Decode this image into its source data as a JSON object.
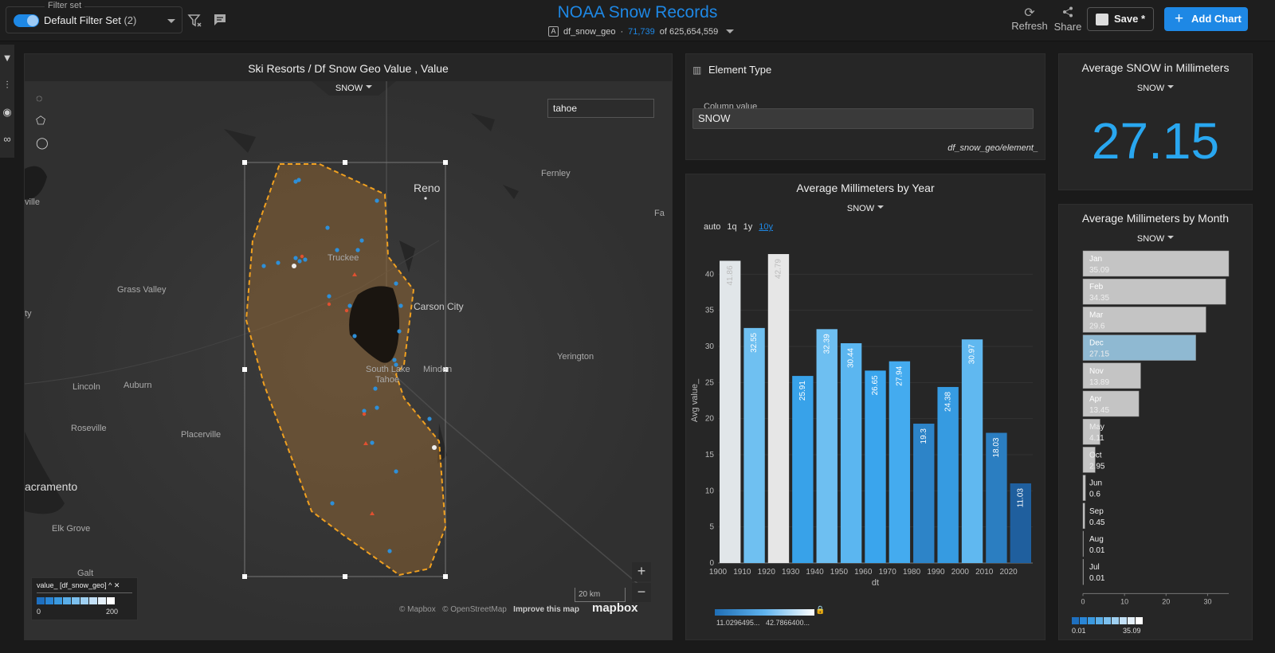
{
  "header": {
    "filter_set_legend": "Filter set",
    "filter_set_name": "Default Filter Set",
    "filter_set_count": "(2)",
    "title": "NOAA Snow Records",
    "dataset": "df_snow_geo",
    "dataset_filtered": "71,739",
    "dataset_total": "of 625,654,559",
    "refresh_label": "Refresh",
    "share_label": "Share",
    "save_label": "Save *",
    "add_chart_label": "Add Chart"
  },
  "map_panel": {
    "title": "Ski Resorts / Df Snow Geo Value , Value",
    "tab": "SNOW",
    "search_value": "tahoe",
    "scale": "20 km",
    "attribution_1": "© Mapbox",
    "attribution_2": "© OpenStreetMap",
    "attribution_3": "Improve this map",
    "mapbox_logo": "mapbox",
    "places": [
      "Reno",
      "Fernley",
      "Truckee",
      "Carson City",
      "Grass Valley",
      "South Lake",
      "Tahoe",
      "Minden",
      "Yerington",
      "Lincoln",
      "Auburn",
      "Roseville",
      "Placerville",
      "acramento",
      "Elk Grove",
      "Galt",
      "ville",
      "ty",
      "Fa"
    ],
    "legend": {
      "title": "value_ [df_snow_geo]",
      "min": "0",
      "max": "200"
    }
  },
  "element_panel": {
    "title": "Element Type",
    "column_label": "Column value",
    "column_value": "SNOW",
    "path": "df_snow_geo/element_"
  },
  "kpi_panel": {
    "title": "Average SNOW in Millimeters",
    "tab": "SNOW",
    "value": "27.15"
  },
  "year_panel": {
    "title": "Average Millimeters by Year",
    "tab": "SNOW",
    "intervals": [
      "auto",
      "1q",
      "1y",
      "10y"
    ],
    "legend_min": "11.0296495...",
    "legend_max": "42.7866400..."
  },
  "month_panel": {
    "title": "Average Millimeters by Month",
    "tab": "SNOW",
    "legend_min": "0.01",
    "legend_max": "35.09"
  },
  "colors": {
    "accent": "#1e88e5",
    "kpi": "#29a7f0",
    "background": "#1a1a1a",
    "panel": "#262626",
    "selection": "#f0a020"
  },
  "chart_data": [
    {
      "type": "bar",
      "title": "Average Millimeters by Year",
      "xlabel": "dt",
      "ylabel": "Avg value_",
      "categories": [
        "1900",
        "1910",
        "1920",
        "1930",
        "1940",
        "1950",
        "1960",
        "1970",
        "1980",
        "1990",
        "2000",
        "2010",
        "2020"
      ],
      "values": [
        41.86,
        32.55,
        42.79,
        25.91,
        32.39,
        30.44,
        26.65,
        27.94,
        19.3,
        24.38,
        30.97,
        18.03,
        11.03
      ],
      "labels": [
        "41.86",
        "32.55",
        "42.79",
        "25.91",
        "32.39",
        "30.44",
        "26.65",
        "27.94",
        "19.3",
        "24.38",
        "30.97",
        "18.03",
        "11.03"
      ],
      "yticks": [
        0,
        5,
        10,
        15,
        20,
        25,
        30,
        35,
        40
      ],
      "ylim": [
        0,
        45
      ],
      "grid": true
    },
    {
      "type": "bar",
      "orientation": "horizontal",
      "title": "Average Millimeters by Month",
      "categories": [
        "Jan",
        "Feb",
        "Mar",
        "Dec",
        "Nov",
        "Apr",
        "May",
        "Oct",
        "Jun",
        "Sep",
        "Aug",
        "Jul"
      ],
      "values": [
        35.09,
        34.35,
        29.6,
        27.15,
        13.89,
        13.45,
        4.11,
        2.95,
        0.6,
        0.45,
        0.01,
        0.01
      ],
      "labels": [
        "35.09",
        "34.35",
        "29.6",
        "27.15",
        "13.89",
        "13.45",
        "4.11",
        "2.95",
        "0.6",
        "0.45",
        "0.01",
        "0.01"
      ],
      "xticks": [
        0,
        10,
        20,
        30
      ],
      "xlim": [
        0,
        35.09
      ]
    }
  ]
}
